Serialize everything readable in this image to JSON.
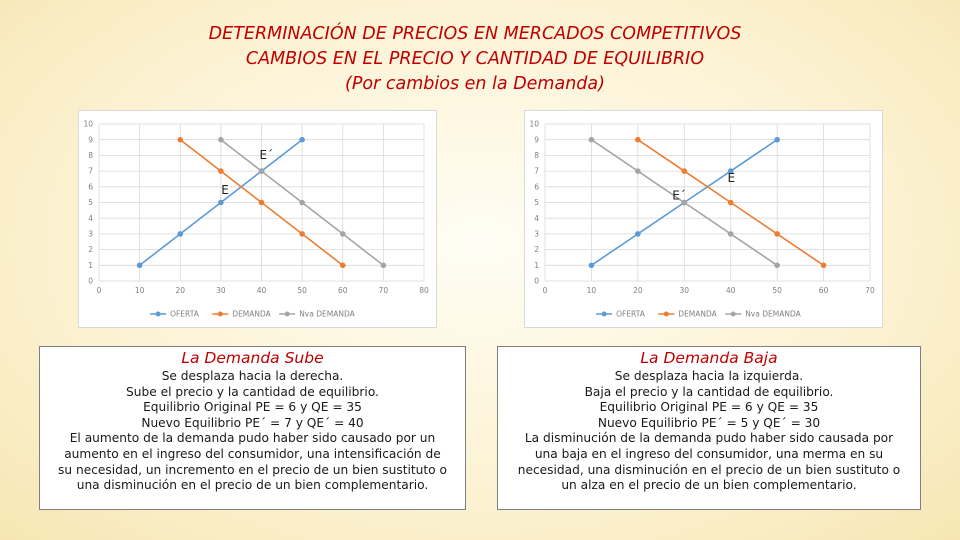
{
  "title": {
    "line1": "DETERMINACIÓN DE PRECIOS EN MERCADOS COMPETITIVOS",
    "line2": "CAMBIOS EN EL PRECIO Y CANTIDAD DE EQUILIBRIO",
    "line3": "(Por cambios en la Demanda)"
  },
  "chart_data": [
    {
      "type": "line",
      "title": "",
      "xlabel": "",
      "ylabel": "",
      "xlim": [
        0,
        80
      ],
      "ylim": [
        0,
        10
      ],
      "xticks": [
        0,
        10,
        20,
        30,
        40,
        50,
        60,
        70,
        80
      ],
      "yticks": [
        0,
        1,
        2,
        3,
        4,
        5,
        6,
        7,
        8,
        9,
        10
      ],
      "grid": true,
      "legend_position": "bottom",
      "series": [
        {
          "name": "OFERTA",
          "color": "#5b9bd5",
          "x": [
            10,
            20,
            30,
            40,
            50
          ],
          "y": [
            1,
            3,
            5,
            7,
            9
          ]
        },
        {
          "name": "DEMANDA",
          "color": "#ed7d31",
          "x": [
            20,
            30,
            40,
            50,
            60
          ],
          "y": [
            9,
            7,
            5,
            3,
            1
          ]
        },
        {
          "name": "Nva DEMANDA",
          "color": "#a5a5a5",
          "x": [
            30,
            40,
            50,
            60,
            70
          ],
          "y": [
            9,
            7,
            5,
            3,
            1
          ]
        }
      ],
      "annotations": [
        {
          "text": "E",
          "x": 35,
          "y": 6
        },
        {
          "text": "E´",
          "x": 40,
          "y": 7
        }
      ]
    },
    {
      "type": "line",
      "title": "",
      "xlabel": "",
      "ylabel": "",
      "xlim": [
        0,
        70
      ],
      "ylim": [
        0,
        10
      ],
      "xticks": [
        0,
        10,
        20,
        30,
        40,
        50,
        60,
        70
      ],
      "yticks": [
        0,
        1,
        2,
        3,
        4,
        5,
        6,
        7,
        8,
        9,
        10
      ],
      "grid": true,
      "legend_position": "bottom",
      "series": [
        {
          "name": "OFERTA",
          "color": "#5b9bd5",
          "x": [
            10,
            20,
            30,
            40,
            50
          ],
          "y": [
            1,
            3,
            5,
            7,
            9
          ]
        },
        {
          "name": "DEMANDA",
          "color": "#ed7d31",
          "x": [
            20,
            30,
            40,
            50,
            60
          ],
          "y": [
            9,
            7,
            5,
            3,
            1
          ]
        },
        {
          "name": "Nva DEMANDA",
          "color": "#a5a5a5",
          "x": [
            10,
            20,
            30,
            40,
            50
          ],
          "y": [
            9,
            7,
            5,
            3,
            1
          ]
        }
      ],
      "annotations": [
        {
          "text": "E",
          "x": 35,
          "y": 6
        },
        {
          "text": "E´",
          "x": 30,
          "y": 5
        }
      ]
    }
  ],
  "left_box": {
    "heading": "La Demanda Sube",
    "line1": "Se desplaza hacia la derecha.",
    "line2": "Sube el precio y la cantidad de equilibrio.",
    "line3": "Equilibrio Original PE = 6 y QE = 35",
    "line4": "Nuevo Equilibrio PE´ = 7 y QE´ = 40",
    "line5": "El aumento de la demanda pudo haber sido causado por un",
    "line6": "aumento en el ingreso del consumidor, una intensificación de",
    "line7": "su necesidad, un incremento en el precio de un bien sustituto o",
    "line8": "una disminución en el precio de un bien complementario."
  },
  "right_box": {
    "heading": "La Demanda Baja",
    "line1": "Se desplaza hacia la izquierda.",
    "line2": "Baja el precio y la cantidad de equilibrio.",
    "line3": "Equilibrio Original PE = 6 y QE = 35",
    "line4": "Nuevo Equilibrio PE´ = 5 y QE´ = 30",
    "line5": "La disminución de la demanda pudo haber sido causada por",
    "line6": "una baja en el ingreso del consumidor, una merma en su",
    "line7": "necesidad, una disminución en el precio de un bien sustituto o",
    "line8": "un alza en el precio de un bien complementario."
  }
}
